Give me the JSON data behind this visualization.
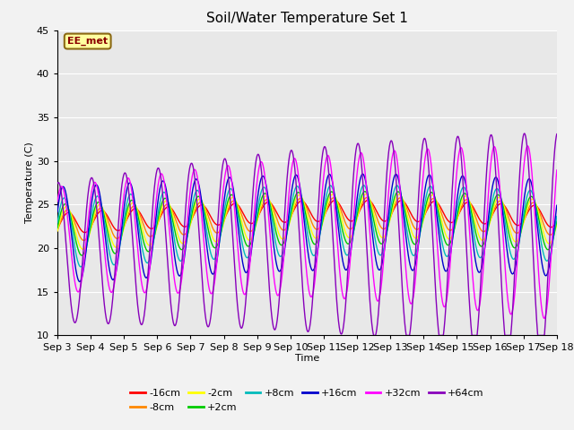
{
  "title": "Soil/Water Temperature Set 1",
  "xlabel": "Time",
  "ylabel": "Temperature (C)",
  "ylim": [
    10,
    45
  ],
  "xlim": [
    0,
    15
  ],
  "annotation": "EE_met",
  "annotation_color": "#8B0000",
  "annotation_bg": "#FFFFA0",
  "background_color": "#E8E8E8",
  "grid_color": "#FFFFFF",
  "xtick_labels": [
    "Sep 3",
    "Sep 4",
    "Sep 5",
    "Sep 6",
    "Sep 7",
    "Sep 8",
    "Sep 9",
    "Sep 10",
    "Sep 11",
    "Sep 12",
    "Sep 13",
    "Sep 14",
    "Sep 15",
    "Sep 16",
    "Sep 17",
    "Sep 18"
  ],
  "series_colors": {
    "-16cm": "#FF0000",
    "-8cm": "#FF8800",
    "-2cm": "#FFFF00",
    "+2cm": "#00CC00",
    "+8cm": "#00BBBB",
    "+16cm": "#0000CC",
    "+32cm": "#FF00FF",
    "+64cm": "#8800BB"
  },
  "series_order": [
    "-16cm",
    "-8cm",
    "-2cm",
    "+2cm",
    "+8cm",
    "+16cm",
    "+32cm",
    "+64cm"
  ]
}
